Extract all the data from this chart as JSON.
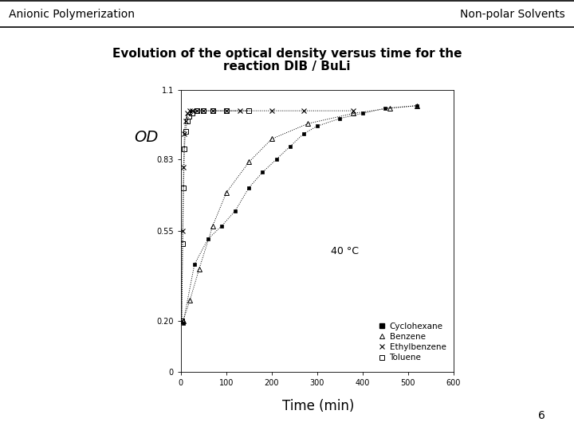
{
  "header_left": "Anionic Polymerization",
  "header_right": "Non-polar Solvents",
  "title_line1": "Evolution of the optical density versus time for the",
  "title_line2": "reaction DIB / BuLi",
  "xlabel": "Time (min)",
  "ylabel": "OD",
  "annotation": "40 °C",
  "page_number": "6",
  "xlim": [
    0,
    600
  ],
  "ylim": [
    0,
    1.1
  ],
  "ytick_vals": [
    0,
    0.2,
    0.55,
    0.83,
    1.1
  ],
  "ytick_labels": [
    "0",
    "0.20",
    "0.55",
    "0.83",
    "1.1"
  ],
  "xtick_vals": [
    0,
    100,
    200,
    300,
    400,
    500,
    600
  ],
  "xtick_labels": [
    "0",
    "100",
    "200",
    "300",
    "400",
    "500",
    "600"
  ],
  "legend_labels": [
    "Cyclohexane",
    "Benzene",
    "Ethylbenzene",
    "Toluene"
  ],
  "cyclohexane_t": [
    5,
    30,
    60,
    90,
    120,
    150,
    180,
    210,
    240,
    270,
    300,
    350,
    400,
    450,
    520
  ],
  "cyclohexane_od": [
    0.19,
    0.42,
    0.52,
    0.57,
    0.63,
    0.72,
    0.78,
    0.83,
    0.88,
    0.93,
    0.96,
    0.99,
    1.01,
    1.03,
    1.04
  ],
  "benzene_t": [
    5,
    20,
    40,
    70,
    100,
    150,
    200,
    280,
    380,
    460,
    520
  ],
  "benzene_od": [
    0.2,
    0.28,
    0.4,
    0.57,
    0.7,
    0.82,
    0.91,
    0.97,
    1.01,
    1.03,
    1.04
  ],
  "ethylbenzene_t": [
    2,
    4,
    6,
    8,
    10,
    15,
    20,
    25,
    35,
    50,
    70,
    100,
    130,
    200,
    270,
    380
  ],
  "ethylbenzene_od": [
    0.2,
    0.55,
    0.8,
    0.93,
    0.98,
    1.01,
    1.02,
    1.02,
    1.02,
    1.02,
    1.02,
    1.02,
    1.02,
    1.02,
    1.02,
    1.02
  ],
  "toluene_t": [
    2,
    4,
    6,
    8,
    10,
    14,
    18,
    25,
    35,
    50,
    70,
    100,
    150
  ],
  "toluene_od": [
    0.2,
    0.5,
    0.72,
    0.87,
    0.94,
    0.98,
    1.0,
    1.01,
    1.02,
    1.02,
    1.02,
    1.02,
    1.02
  ],
  "background_color": "#ffffff"
}
